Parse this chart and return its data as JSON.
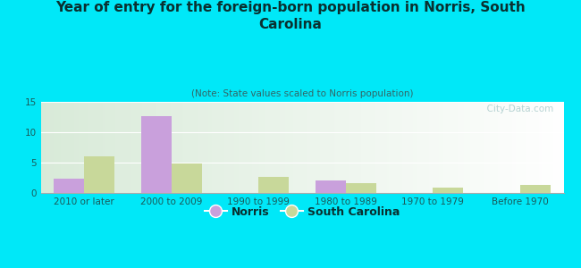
{
  "title": "Year of entry for the foreign-born population in Norris, South\nCarolina",
  "subtitle": "(Note: State values scaled to Norris population)",
  "categories": [
    "2010 or later",
    "2000 to 2009",
    "1990 to 1999",
    "1980 to 1989",
    "1970 to 1979",
    "Before 1970"
  ],
  "norris_values": [
    2.3,
    12.7,
    0,
    2.1,
    0,
    0
  ],
  "sc_values": [
    6.0,
    4.9,
    2.7,
    1.6,
    0.9,
    1.3
  ],
  "norris_color": "#c9a0dc",
  "sc_color": "#c8d89a",
  "background_color": "#00e8f8",
  "ylim": [
    0,
    15
  ],
  "yticks": [
    0,
    5,
    10,
    15
  ],
  "bar_width": 0.35,
  "watermark": "  City-Data.com",
  "title_fontsize": 11,
  "subtitle_fontsize": 7.5,
  "legend_fontsize": 9,
  "tick_fontsize": 7.5
}
